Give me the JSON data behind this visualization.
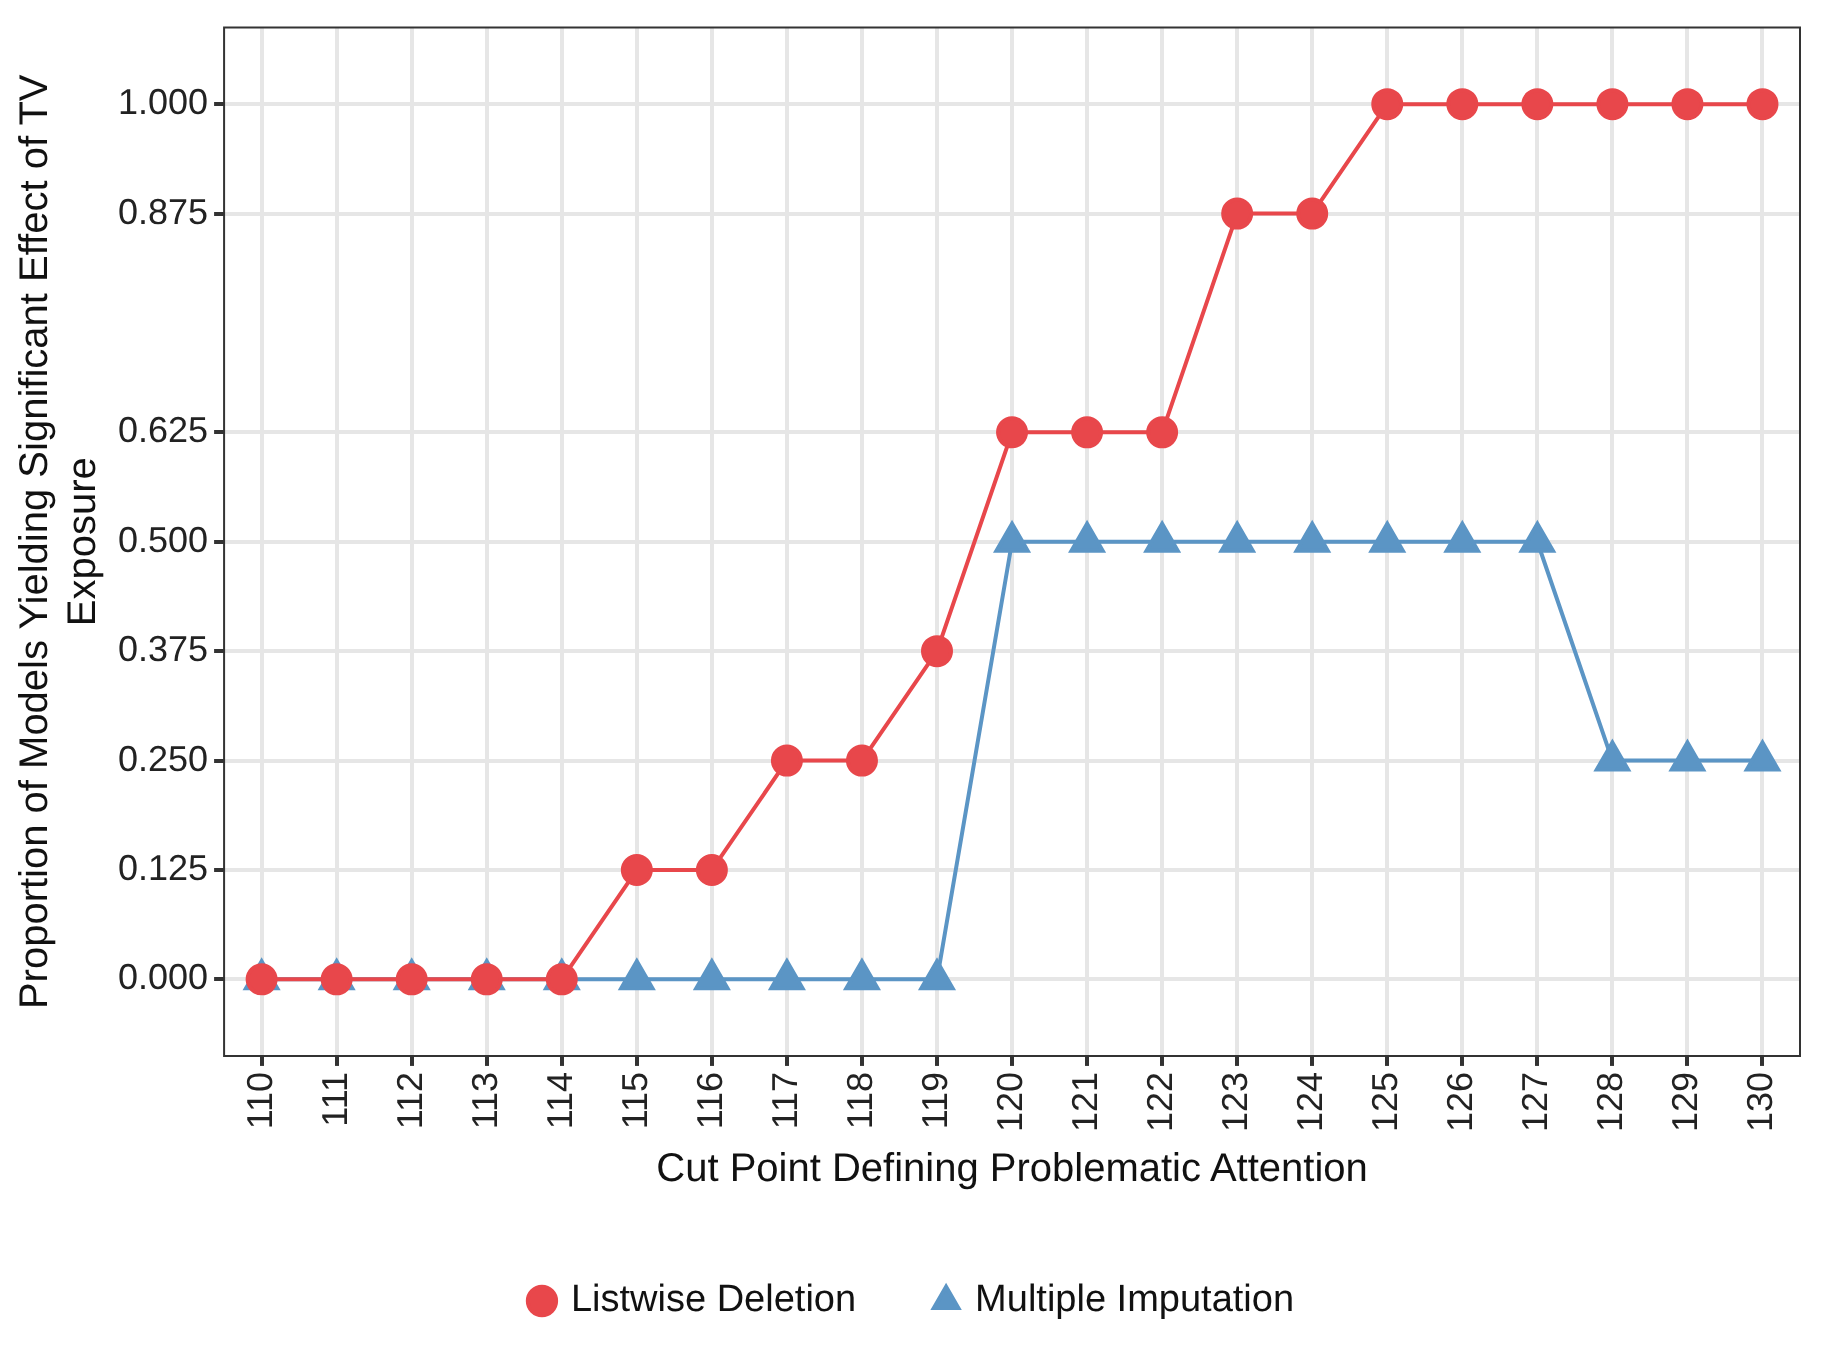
{
  "chart_data": {
    "type": "line",
    "xlabel": "Cut Point Defining Problematic Attention",
    "ylabel": "Proportion of Models Yielding Significant Effect of TV Exposure",
    "categories": [
      "110",
      "111",
      "112",
      "113",
      "114",
      "115",
      "116",
      "117",
      "118",
      "119",
      "120",
      "121",
      "122",
      "123",
      "124",
      "125",
      "126",
      "127",
      "128",
      "129",
      "130"
    ],
    "series": [
      {
        "name": "Listwise Deletion",
        "color": "#e8474b",
        "marker": "circle",
        "values": [
          0,
          0,
          0,
          0,
          0,
          0.125,
          0.125,
          0.25,
          0.25,
          0.375,
          0.625,
          0.625,
          0.625,
          0.875,
          0.875,
          1,
          1,
          1,
          1,
          1,
          1
        ]
      },
      {
        "name": "Multiple Imputation",
        "color": "#5b95c5",
        "marker": "triangle",
        "values": [
          0,
          0,
          0,
          0,
          0,
          0,
          0,
          0,
          0,
          0,
          0.5,
          0.5,
          0.5,
          0.5,
          0.5,
          0.5,
          0.5,
          0.5,
          0.25,
          0.25,
          0.25
        ]
      }
    ],
    "ylim": [
      -0.0875,
      1.0875
    ],
    "yticks": [
      {
        "value": 0,
        "label": "0.000"
      },
      {
        "value": 0.125,
        "label": "0.125"
      },
      {
        "value": 0.25,
        "label": "0.250"
      },
      {
        "value": 0.375,
        "label": "0.375"
      },
      {
        "value": 0.5,
        "label": "0.500"
      },
      {
        "value": 0.625,
        "label": "0.625"
      },
      {
        "value": 0.875,
        "label": "0.875"
      },
      {
        "value": 1,
        "label": "1.000"
      }
    ],
    "grid": true,
    "legend": "bottom",
    "line_style": "solid"
  }
}
